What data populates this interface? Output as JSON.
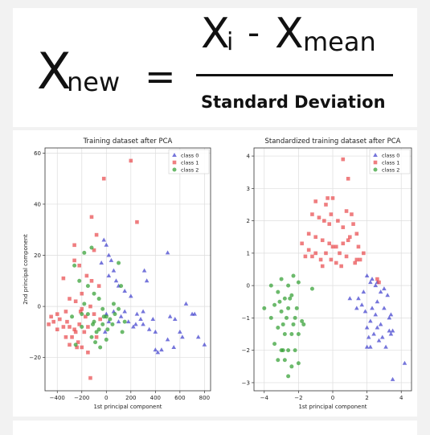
{
  "formula": {
    "lhs_symbol": "X",
    "lhs_sub": "new",
    "equals": "=",
    "num_symbol_1": "X",
    "num_sub_1": "i",
    "minus": "-",
    "num_symbol_2": "X",
    "num_sub_2": "mean",
    "denominator": "Standard Deviation"
  },
  "colors": {
    "class0": "#3b3bcc",
    "class1": "#e8474a",
    "class2": "#2e9c2e"
  },
  "chart_data": [
    {
      "type": "scatter",
      "title": "Training dataset after PCA",
      "xlabel": "1st principal component",
      "ylabel": "2nd principal component",
      "xlim": [
        -500,
        850
      ],
      "ylim": [
        -33,
        62
      ],
      "xticks": [
        -400,
        -200,
        0,
        200,
        400,
        600,
        800
      ],
      "yticks": [
        -20,
        0,
        20,
        40,
        60
      ],
      "tick_labels_x": [
        "−400",
        "−200",
        "0",
        "200",
        "400",
        "600",
        "800"
      ],
      "tick_labels_y": [
        "−20",
        "0",
        "20",
        "40",
        "60"
      ],
      "grid": true,
      "legend": "top-right",
      "series": [
        {
          "name": "class 0",
          "marker": "triangle",
          "color": "#3b3bcc",
          "points": [
            [
              -20,
              26
            ],
            [
              0,
              24
            ],
            [
              20,
              20
            ],
            [
              40,
              18
            ],
            [
              60,
              14
            ],
            [
              80,
              10
            ],
            [
              100,
              8
            ],
            [
              -40,
              17
            ],
            [
              20,
              12
            ],
            [
              150,
              6
            ],
            [
              200,
              4
            ],
            [
              250,
              -3
            ],
            [
              280,
              -5
            ],
            [
              300,
              -7
            ],
            [
              350,
              -9
            ],
            [
              400,
              -10
            ],
            [
              420,
              -18
            ],
            [
              450,
              -17
            ],
            [
              500,
              -13
            ],
            [
              550,
              -16
            ],
            [
              560,
              -5
            ],
            [
              600,
              -10
            ],
            [
              620,
              -12
            ],
            [
              700,
              -3
            ],
            [
              720,
              -3
            ],
            [
              750,
              -12
            ],
            [
              800,
              -15
            ],
            [
              310,
              14
            ],
            [
              330,
              10
            ],
            [
              380,
              -5
            ],
            [
              500,
              21
            ],
            [
              520,
              -4
            ],
            [
              650,
              1
            ],
            [
              180,
              -6
            ],
            [
              220,
              -8
            ],
            [
              150,
              -2
            ],
            [
              120,
              -4
            ],
            [
              100,
              -6
            ],
            [
              60,
              -2
            ],
            [
              -10,
              -10
            ],
            [
              20,
              -6
            ],
            [
              0,
              -3
            ],
            [
              240,
              -7
            ],
            [
              300,
              -2
            ],
            [
              400,
              -17
            ]
          ]
        },
        {
          "name": "class 1",
          "marker": "square",
          "color": "#e8474a",
          "points": [
            [
              -20,
              50
            ],
            [
              200,
              57
            ],
            [
              -120,
              35
            ],
            [
              250,
              33
            ],
            [
              -80,
              28
            ],
            [
              -100,
              22
            ],
            [
              -260,
              24
            ],
            [
              -220,
              16
            ],
            [
              -160,
              12
            ],
            [
              -120,
              10
            ],
            [
              -350,
              11
            ],
            [
              -200,
              5
            ],
            [
              -250,
              2
            ],
            [
              -300,
              3
            ],
            [
              -200,
              -1
            ],
            [
              -130,
              0
            ],
            [
              -330,
              -2
            ],
            [
              -400,
              -3
            ],
            [
              -450,
              -4
            ],
            [
              -380,
              -5
            ],
            [
              -320,
              -6
            ],
            [
              -300,
              -8
            ],
            [
              -250,
              -10
            ],
            [
              -280,
              -12
            ],
            [
              -230,
              -14
            ],
            [
              -200,
              -16
            ],
            [
              -260,
              -9
            ],
            [
              -220,
              -7
            ],
            [
              -350,
              -8
            ],
            [
              -400,
              -9
            ],
            [
              -470,
              -7
            ],
            [
              -150,
              -18
            ],
            [
              -130,
              -28
            ],
            [
              -260,
              18
            ],
            [
              -170,
              -4
            ],
            [
              -100,
              -3
            ],
            [
              -50,
              -5
            ],
            [
              -430,
              -6
            ],
            [
              -330,
              -12
            ],
            [
              -300,
              -15
            ],
            [
              -180,
              -10
            ],
            [
              -150,
              -8
            ],
            [
              -80,
              -12
            ],
            [
              -60,
              8
            ],
            [
              -240,
              -16
            ],
            [
              -210,
              -2
            ]
          ]
        },
        {
          "name": "class 2",
          "marker": "circle",
          "color": "#2e9c2e",
          "points": [
            [
              -180,
              21
            ],
            [
              -260,
              16
            ],
            [
              -220,
              10
            ],
            [
              -120,
              23
            ],
            [
              100,
              17
            ],
            [
              120,
              8
            ],
            [
              -150,
              8
            ],
            [
              -100,
              5
            ],
            [
              -60,
              3
            ],
            [
              -30,
              -1
            ],
            [
              -180,
              1
            ],
            [
              -150,
              -3
            ],
            [
              -100,
              -6
            ],
            [
              -80,
              -10
            ],
            [
              -200,
              -8
            ],
            [
              -50,
              -16
            ],
            [
              0,
              -13
            ],
            [
              30,
              -5
            ],
            [
              50,
              -7
            ],
            [
              10,
              -9
            ],
            [
              -30,
              -7
            ],
            [
              70,
              -3
            ],
            [
              130,
              -10
            ],
            [
              150,
              -6
            ],
            [
              -20,
              -4
            ],
            [
              -120,
              -12
            ],
            [
              -90,
              -14
            ],
            [
              60,
              1
            ],
            [
              100,
              -1
            ],
            [
              -250,
              -15
            ],
            [
              -280,
              -4
            ],
            [
              -200,
              -3
            ],
            [
              -110,
              -7
            ],
            [
              0,
              -4
            ],
            [
              -60,
              -9
            ]
          ]
        }
      ]
    },
    {
      "type": "scatter",
      "title": "Standardized training dataset after PCA",
      "xlabel": "1st principal component",
      "ylabel": "",
      "xlim": [
        -4.6,
        4.6
      ],
      "ylim": [
        -3.25,
        4.25
      ],
      "xticks": [
        -4,
        -2,
        0,
        2,
        4
      ],
      "yticks": [
        -3,
        -2,
        -1,
        0,
        1,
        2,
        3,
        4
      ],
      "tick_labels_x": [
        "−4",
        "−2",
        "0",
        "2",
        "4"
      ],
      "tick_labels_y": [
        "−3",
        "−2",
        "−1",
        "0",
        "1",
        "2",
        "3",
        "4"
      ],
      "grid": true,
      "legend": "top-right",
      "series": [
        {
          "name": "class 0",
          "marker": "triangle",
          "color": "#3b3bcc",
          "points": [
            [
              2.0,
              0.3
            ],
            [
              2.2,
              0.1
            ],
            [
              2.5,
              0.0
            ],
            [
              2.8,
              -0.2
            ],
            [
              3.0,
              -0.1
            ],
            [
              3.2,
              -0.3
            ],
            [
              2.6,
              -0.5
            ],
            [
              1.8,
              -0.2
            ],
            [
              2.3,
              -0.7
            ],
            [
              3.0,
              -0.7
            ],
            [
              3.4,
              -0.9
            ],
            [
              2.5,
              -0.9
            ],
            [
              2.2,
              -1.1
            ],
            [
              2.8,
              -1.2
            ],
            [
              3.3,
              -1.4
            ],
            [
              2.0,
              -1.3
            ],
            [
              2.4,
              -1.5
            ],
            [
              2.7,
              -1.7
            ],
            [
              3.1,
              -1.9
            ],
            [
              2.2,
              -1.9
            ],
            [
              3.5,
              -1.4
            ],
            [
              1.9,
              -0.8
            ],
            [
              1.5,
              -0.4
            ],
            [
              4.2,
              -2.4
            ],
            [
              3.5,
              -2.9
            ],
            [
              1.0,
              -0.4
            ],
            [
              2.3,
              0.2
            ],
            [
              2.6,
              0.1
            ],
            [
              1.4,
              -0.7
            ],
            [
              2.9,
              -1.6
            ],
            [
              2.1,
              -1.6
            ],
            [
              3.3,
              -1.0
            ],
            [
              2.6,
              -1.3
            ],
            [
              2.0,
              -1.9
            ],
            [
              3.4,
              -1.5
            ],
            [
              1.7,
              -0.6
            ]
          ]
        },
        {
          "name": "class 1",
          "marker": "square",
          "color": "#e8474a",
          "points": [
            [
              0.6,
              3.9
            ],
            [
              0.9,
              3.3
            ],
            [
              -1.0,
              2.6
            ],
            [
              -0.3,
              2.7
            ],
            [
              -0.4,
              2.5
            ],
            [
              0.0,
              2.7
            ],
            [
              -0.1,
              2.2
            ],
            [
              0.8,
              2.3
            ],
            [
              1.1,
              2.2
            ],
            [
              -1.2,
              2.2
            ],
            [
              -0.8,
              2.1
            ],
            [
              -0.5,
              2.0
            ],
            [
              -0.2,
              1.9
            ],
            [
              0.3,
              2.0
            ],
            [
              0.6,
              1.8
            ],
            [
              1.2,
              1.9
            ],
            [
              -1.4,
              1.6
            ],
            [
              -1.0,
              1.5
            ],
            [
              -0.6,
              1.4
            ],
            [
              -0.2,
              1.3
            ],
            [
              0.2,
              1.2
            ],
            [
              0.6,
              1.3
            ],
            [
              1.0,
              1.5
            ],
            [
              1.4,
              1.6
            ],
            [
              -1.8,
              1.3
            ],
            [
              -1.4,
              1.1
            ],
            [
              -1.0,
              1.0
            ],
            [
              -0.4,
              1.0
            ],
            [
              0.0,
              1.2
            ],
            [
              0.4,
              1.0
            ],
            [
              0.9,
              1.4
            ],
            [
              1.5,
              1.2
            ],
            [
              1.8,
              1.0
            ],
            [
              -1.6,
              0.9
            ],
            [
              -1.2,
              0.9
            ],
            [
              -0.6,
              0.6
            ],
            [
              0.2,
              0.7
            ],
            [
              0.8,
              0.9
            ],
            [
              1.6,
              0.8
            ],
            [
              1.4,
              0.8
            ],
            [
              -0.7,
              0.8
            ],
            [
              -0.1,
              0.8
            ],
            [
              0.5,
              0.6
            ],
            [
              1.3,
              0.7
            ],
            [
              2.7,
              0.1
            ],
            [
              2.6,
              0.2
            ]
          ]
        },
        {
          "name": "class 2",
          "marker": "circle",
          "color": "#2e9c2e",
          "points": [
            [
              -3.6,
              0.0
            ],
            [
              -3.0,
              0.2
            ],
            [
              -2.6,
              0.0
            ],
            [
              -2.3,
              0.3
            ],
            [
              -1.2,
              -0.1
            ],
            [
              -2.0,
              0.1
            ],
            [
              -3.2,
              -0.2
            ],
            [
              -2.8,
              -0.4
            ],
            [
              -2.4,
              -0.3
            ],
            [
              -3.4,
              -0.6
            ],
            [
              -3.0,
              -0.8
            ],
            [
              -2.6,
              -0.7
            ],
            [
              -2.2,
              -1.0
            ],
            [
              -1.8,
              -1.1
            ],
            [
              -3.6,
              -1.0
            ],
            [
              -3.2,
              -1.3
            ],
            [
              -2.8,
              -1.5
            ],
            [
              -2.4,
              -1.5
            ],
            [
              -2.0,
              -1.5
            ],
            [
              -3.4,
              -1.8
            ],
            [
              -3.0,
              -2.0
            ],
            [
              -2.6,
              -2.0
            ],
            [
              -2.2,
              -2.0
            ],
            [
              -2.8,
              -2.3
            ],
            [
              -2.4,
              -2.5
            ],
            [
              -2.0,
              -2.4
            ],
            [
              -2.6,
              -2.8
            ],
            [
              -3.2,
              -2.3
            ],
            [
              -4.0,
              -0.7
            ],
            [
              -2.9,
              -1.2
            ],
            [
              -2.5,
              -0.4
            ],
            [
              -2.1,
              -0.7
            ],
            [
              -1.7,
              -1.2
            ],
            [
              -3.1,
              -0.5
            ],
            [
              -2.7,
              -1.0
            ],
            [
              -2.3,
              -1.2
            ],
            [
              -2.9,
              -2.0
            ]
          ]
        }
      ]
    }
  ]
}
